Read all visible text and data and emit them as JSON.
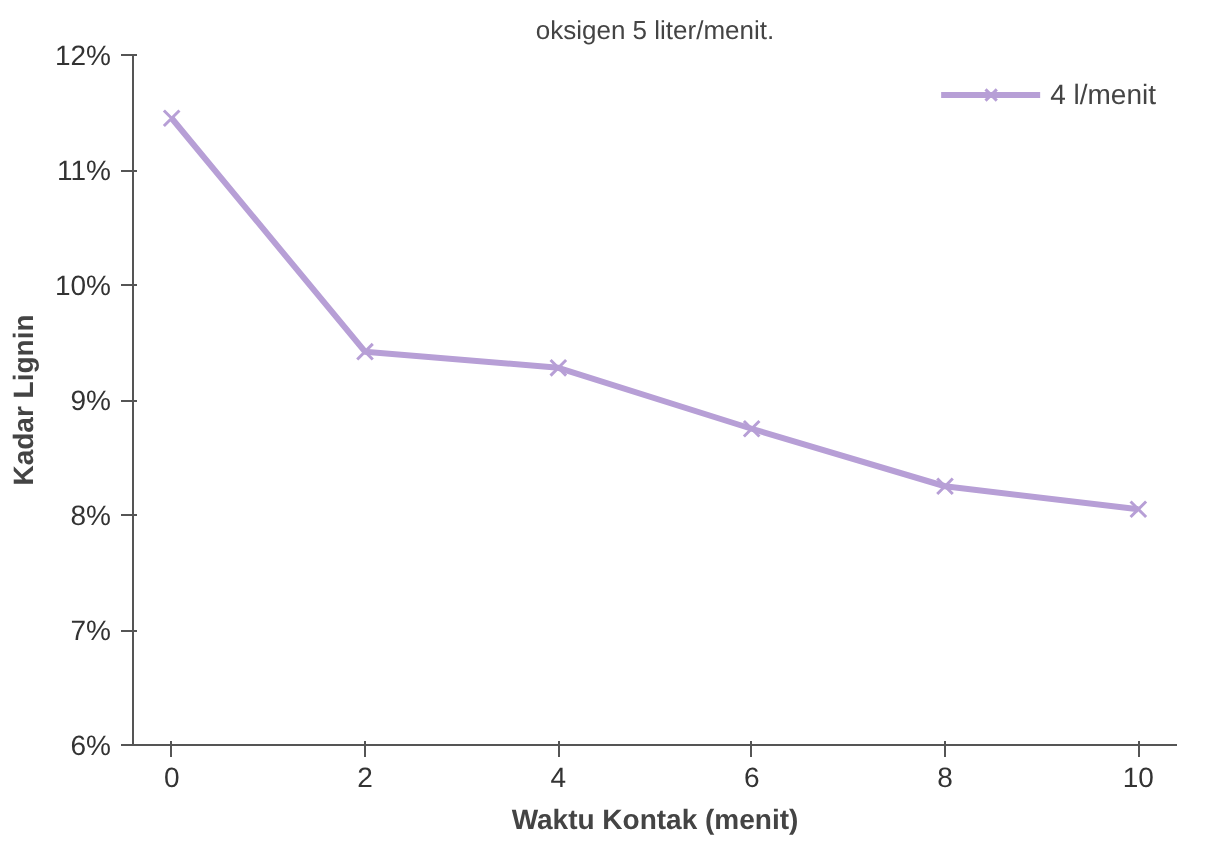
{
  "chart_data": {
    "type": "line",
    "title": "oksigen 5 liter/menit.",
    "xlabel": "Waktu Kontak (menit)",
    "ylabel": "Kadar Lignin",
    "x": [
      0,
      2,
      4,
      6,
      8,
      10
    ],
    "series": [
      {
        "name": "4 l/menit",
        "color": "#b79fd6",
        "values": [
          11.45,
          9.42,
          9.28,
          8.75,
          8.25,
          8.05
        ]
      }
    ],
    "xlim": [
      -0.4,
      10.4
    ],
    "xticks": [
      0,
      2,
      4,
      6,
      8,
      10
    ],
    "ylim": [
      6,
      12
    ],
    "yticks": [
      {
        "value": 6,
        "label": "6%"
      },
      {
        "value": 7,
        "label": "7%"
      },
      {
        "value": 8,
        "label": "8%"
      },
      {
        "value": 9,
        "label": "9%"
      },
      {
        "value": 10,
        "label": "10%"
      },
      {
        "value": 11,
        "label": "11%"
      },
      {
        "value": 12,
        "label": "12%"
      }
    ],
    "legend": "top right",
    "grid": false,
    "marker": "cross",
    "line_style": "solid"
  }
}
